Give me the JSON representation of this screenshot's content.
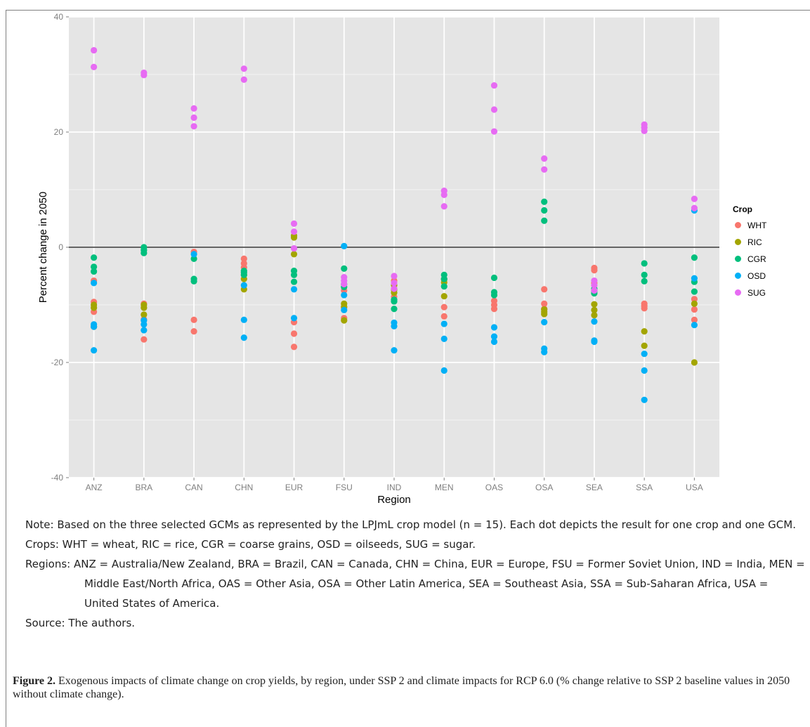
{
  "chart_data": {
    "type": "scatter",
    "xlabel": "Region",
    "ylabel": "Percent change in 2050",
    "ylim": [
      -40,
      40
    ],
    "yticks": [
      40,
      20,
      0,
      -20,
      -40
    ],
    "categories": [
      "ANZ",
      "BRA",
      "CAN",
      "CHN",
      "EUR",
      "FSU",
      "IND",
      "MEN",
      "OAS",
      "OSA",
      "SEA",
      "SSA",
      "USA"
    ],
    "grid": true,
    "reference_line": 0,
    "legend": {
      "title": "Crop",
      "position": "right"
    },
    "series": [
      {
        "name": "WHT",
        "color": "#F8766D",
        "points": [
          [
            "ANZ",
            -5.8
          ],
          [
            "ANZ",
            -9.5
          ],
          [
            "ANZ",
            -11.2
          ],
          [
            "BRA",
            -9.8
          ],
          [
            "BRA",
            -12.5
          ],
          [
            "BRA",
            -16.0
          ],
          [
            "CAN",
            -0.8
          ],
          [
            "CAN",
            -12.6
          ],
          [
            "CAN",
            -14.6
          ],
          [
            "CHN",
            -2.0
          ],
          [
            "CHN",
            -2.8
          ],
          [
            "CHN",
            -3.5
          ],
          [
            "EUR",
            -13.0
          ],
          [
            "EUR",
            -15.0
          ],
          [
            "EUR",
            -17.3
          ],
          [
            "FSU",
            -7.5
          ],
          [
            "FSU",
            -10.5
          ],
          [
            "FSU",
            -12.3
          ],
          [
            "IND",
            -5.8
          ],
          [
            "IND",
            -7.2
          ],
          [
            "IND",
            -8.6
          ],
          [
            "MEN",
            -10.4
          ],
          [
            "MEN",
            -12.0
          ],
          [
            "MEN",
            -5.5
          ],
          [
            "OAS",
            -9.3
          ],
          [
            "OAS",
            -10.0
          ],
          [
            "OAS",
            -10.7
          ],
          [
            "OSA",
            -7.3
          ],
          [
            "OSA",
            -9.8
          ],
          [
            "OSA",
            -10.7
          ],
          [
            "SEA",
            -3.6
          ],
          [
            "SEA",
            -4.0
          ],
          [
            "SEA",
            -6.2
          ],
          [
            "SSA",
            -9.8
          ],
          [
            "SSA",
            -10.2
          ],
          [
            "SSA",
            -10.6
          ],
          [
            "USA",
            -9.0
          ],
          [
            "USA",
            -10.8
          ],
          [
            "USA",
            -12.6
          ]
        ]
      },
      {
        "name": "RIC",
        "color": "#A3A500",
        "points": [
          [
            "ANZ",
            -10.0
          ],
          [
            "ANZ",
            -10.5
          ],
          [
            "ANZ",
            -13.8
          ],
          [
            "BRA",
            -10.0
          ],
          [
            "BRA",
            -10.5
          ],
          [
            "BRA",
            -11.7
          ],
          [
            "CHN",
            -4.8
          ],
          [
            "CHN",
            -5.5
          ],
          [
            "CHN",
            -7.3
          ],
          [
            "EUR",
            2.0
          ],
          [
            "EUR",
            1.7
          ],
          [
            "EUR",
            -1.2
          ],
          [
            "FSU",
            -9.8
          ],
          [
            "FSU",
            -10.3
          ],
          [
            "FSU",
            -12.7
          ],
          [
            "IND",
            -6.6
          ],
          [
            "IND",
            -7.4
          ],
          [
            "IND",
            -7.9
          ],
          [
            "MEN",
            -5.6
          ],
          [
            "MEN",
            -6.1
          ],
          [
            "MEN",
            -8.5
          ],
          [
            "OSA",
            -10.8
          ],
          [
            "OSA",
            -11.2
          ],
          [
            "OSA",
            -11.6
          ],
          [
            "SEA",
            -9.9
          ],
          [
            "SEA",
            -10.9
          ],
          [
            "SEA",
            -11.8
          ],
          [
            "SSA",
            -14.6
          ],
          [
            "SSA",
            -17.1
          ],
          [
            "USA",
            -9.8
          ],
          [
            "USA",
            -20.0
          ]
        ]
      },
      {
        "name": "CGR",
        "color": "#00BF7D",
        "points": [
          [
            "ANZ",
            -1.8
          ],
          [
            "ANZ",
            -3.4
          ],
          [
            "ANZ",
            -4.2
          ],
          [
            "BRA",
            0.0
          ],
          [
            "BRA",
            -0.5
          ],
          [
            "BRA",
            -1.0
          ],
          [
            "CAN",
            -2.0
          ],
          [
            "CAN",
            -5.5
          ],
          [
            "CAN",
            -5.9
          ],
          [
            "CHN",
            -4.1
          ],
          [
            "CHN",
            -4.4
          ],
          [
            "CHN",
            -4.8
          ],
          [
            "EUR",
            -4.1
          ],
          [
            "EUR",
            -4.8
          ],
          [
            "EUR",
            -6.0
          ],
          [
            "FSU",
            -3.7
          ],
          [
            "FSU",
            -6.4
          ],
          [
            "FSU",
            -6.9
          ],
          [
            "IND",
            -9.1
          ],
          [
            "IND",
            -9.4
          ],
          [
            "IND",
            -10.7
          ],
          [
            "MEN",
            -4.8
          ],
          [
            "MEN",
            -5.5
          ],
          [
            "MEN",
            -6.8
          ],
          [
            "OAS",
            -5.3
          ],
          [
            "OAS",
            -7.8
          ],
          [
            "OAS",
            -8.3
          ],
          [
            "OSA",
            7.9
          ],
          [
            "OSA",
            6.4
          ],
          [
            "OSA",
            4.6
          ],
          [
            "SEA",
            -7.2
          ],
          [
            "SEA",
            -7.6
          ],
          [
            "SEA",
            -8.0
          ],
          [
            "SSA",
            -2.8
          ],
          [
            "SSA",
            -4.8
          ],
          [
            "SSA",
            -5.9
          ],
          [
            "USA",
            -1.8
          ],
          [
            "USA",
            -6.0
          ],
          [
            "USA",
            -7.7
          ]
        ]
      },
      {
        "name": "OSD",
        "color": "#00B0F6",
        "points": [
          [
            "ANZ",
            -6.2
          ],
          [
            "ANZ",
            -13.4
          ],
          [
            "ANZ",
            -13.8
          ],
          [
            "ANZ",
            -17.9
          ],
          [
            "BRA",
            -12.7
          ],
          [
            "BRA",
            -13.4
          ],
          [
            "BRA",
            -14.4
          ],
          [
            "CAN",
            -1.2
          ],
          [
            "CHN",
            -6.6
          ],
          [
            "CHN",
            -12.6
          ],
          [
            "CHN",
            -15.7
          ],
          [
            "EUR",
            -7.3
          ],
          [
            "EUR",
            -12.3
          ],
          [
            "FSU",
            0.2
          ],
          [
            "FSU",
            -8.3
          ],
          [
            "FSU",
            -10.9
          ],
          [
            "IND",
            -13.1
          ],
          [
            "IND",
            -13.7
          ],
          [
            "IND",
            -17.9
          ],
          [
            "MEN",
            -13.3
          ],
          [
            "MEN",
            -15.9
          ],
          [
            "MEN",
            -21.4
          ],
          [
            "OAS",
            -13.9
          ],
          [
            "OAS",
            -15.5
          ],
          [
            "OAS",
            -16.4
          ],
          [
            "OSA",
            -13.0
          ],
          [
            "OSA",
            -17.6
          ],
          [
            "OSA",
            -18.2
          ],
          [
            "SEA",
            -12.9
          ],
          [
            "SEA",
            -16.2
          ],
          [
            "SEA",
            -16.4
          ],
          [
            "SSA",
            -18.5
          ],
          [
            "SSA",
            -21.4
          ],
          [
            "SSA",
            -26.5
          ],
          [
            "USA",
            6.4
          ],
          [
            "USA",
            -5.4
          ],
          [
            "USA",
            -13.5
          ]
        ]
      },
      {
        "name": "SUG",
        "color": "#E76BF3",
        "points": [
          [
            "ANZ",
            34.2
          ],
          [
            "ANZ",
            31.3
          ],
          [
            "BRA",
            30.3
          ],
          [
            "BRA",
            29.9
          ],
          [
            "CAN",
            24.1
          ],
          [
            "CAN",
            22.5
          ],
          [
            "CAN",
            21.0
          ],
          [
            "CHN",
            31.0
          ],
          [
            "CHN",
            29.1
          ],
          [
            "EUR",
            4.1
          ],
          [
            "EUR",
            2.7
          ],
          [
            "EUR",
            -0.2
          ],
          [
            "FSU",
            -5.2
          ],
          [
            "FSU",
            -5.8
          ],
          [
            "FSU",
            -6.4
          ],
          [
            "IND",
            -5.0
          ],
          [
            "IND",
            -6.2
          ],
          [
            "IND",
            -7.2
          ],
          [
            "MEN",
            9.8
          ],
          [
            "MEN",
            9.1
          ],
          [
            "MEN",
            7.1
          ],
          [
            "OAS",
            28.1
          ],
          [
            "OAS",
            23.9
          ],
          [
            "OAS",
            20.1
          ],
          [
            "OSA",
            15.4
          ],
          [
            "OSA",
            13.5
          ],
          [
            "SEA",
            -5.8
          ],
          [
            "SEA",
            -6.6
          ],
          [
            "SEA",
            -7.5
          ],
          [
            "SSA",
            21.3
          ],
          [
            "SSA",
            20.8
          ],
          [
            "SSA",
            20.2
          ],
          [
            "USA",
            8.4
          ],
          [
            "USA",
            6.8
          ]
        ]
      }
    ]
  },
  "notes": {
    "note": "Note: Based on the three selected GCMs as represented by the LPJmL crop model (n = 15). Each dot depicts the result for one crop and one GCM.",
    "crops": "Crops: WHT = wheat, RIC = rice, CGR = coarse grains, OSD = oilseeds, SUG = sugar.",
    "regions": "Regions: ANZ = Australia/New Zealand, BRA = Brazil, CAN = Canada, CHN = China, EUR = Europe, FSU = Former Soviet Union, IND = India, MEN = Middle East/North Africa, OAS = Other Asia, OSA = Other Latin America, SEA = Southeast Asia, SSA = Sub-Saharan Africa, USA = United States of America.",
    "source": "Source: The authors."
  },
  "caption": {
    "label": "Figure 2.",
    "text": " Exogenous impacts of climate change on crop yields, by region, under SSP 2 and climate impacts for RCP 6.0 (% change relative to SSP 2 baseline values in 2050 without climate change)."
  }
}
